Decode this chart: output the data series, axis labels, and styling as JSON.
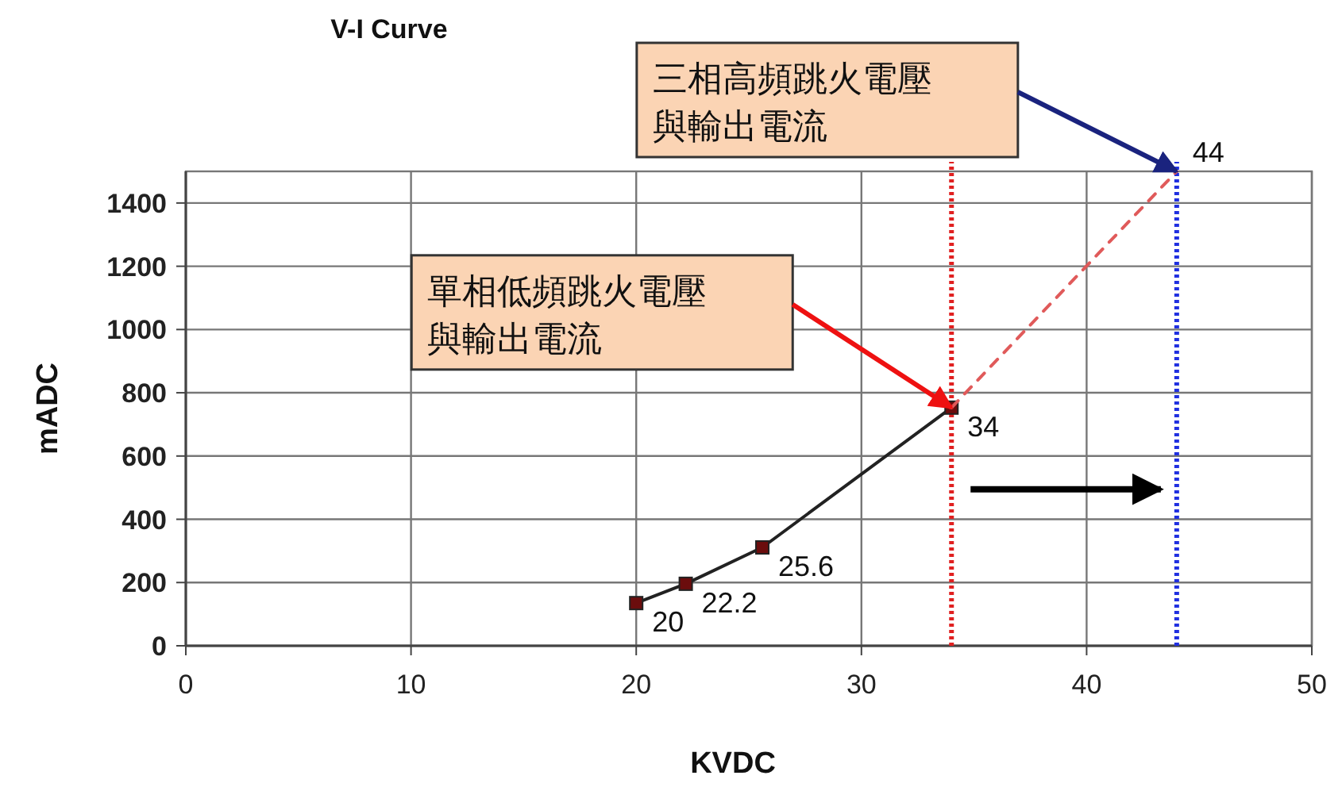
{
  "chart_data": {
    "type": "line",
    "title": "V-I Curve",
    "xlabel": "KVDC",
    "ylabel": "mADC",
    "xlim": [
      0,
      50
    ],
    "xticks": [
      0,
      10,
      20,
      30,
      40,
      50
    ],
    "ylim": [
      0,
      1500
    ],
    "yticks": [
      0,
      200,
      400,
      600,
      800,
      1000,
      1200,
      1400
    ],
    "grid": true,
    "series": [
      {
        "color": "#222222",
        "x": [
          20,
          22.2,
          25.6,
          34
        ],
        "values": [
          135,
          196,
          311,
          753
        ],
        "line_style": "solid",
        "marker": "square"
      },
      {
        "color": "#e05a5a",
        "x": [
          34,
          44
        ],
        "values": [
          753,
          1500
        ],
        "line_style": "dashed",
        "marker": "none"
      }
    ],
    "ref_lines": [
      {
        "axis": "x",
        "value": 34,
        "color": "#e02020",
        "line_style": "dotted"
      },
      {
        "axis": "x",
        "value": 44,
        "color": "#2030e0",
        "line_style": "dotted"
      }
    ],
    "annotations": [
      "單相低頻跳火電壓與輸出電流",
      "三相高頻跳火電壓與輸出電流",
      {
        "text": "20",
        "x": 20,
        "y": 135
      },
      {
        "text": "22.2",
        "x": 22.2,
        "y": 196
      },
      {
        "text": "25.6",
        "x": 25.6,
        "y": 311
      },
      {
        "text": "34",
        "x": 34,
        "y": 753
      },
      {
        "text": "44",
        "x": 44,
        "y": 1500
      }
    ]
  }
}
